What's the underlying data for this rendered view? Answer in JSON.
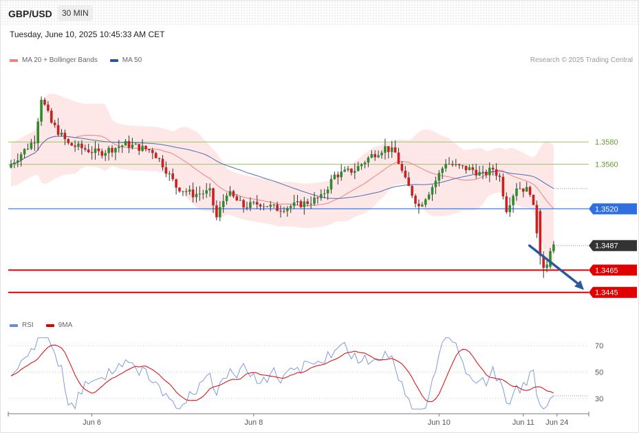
{
  "header": {
    "symbol": "GBP/USD",
    "interval": "30 MIN",
    "datetime": "Tuesday, June 10, 2025 10:45:33 AM CET",
    "credit": "Research © 2025 Trading Central"
  },
  "legend_main": [
    {
      "label": "MA 20 + Bollinger Bands",
      "color": "#f08080"
    },
    {
      "label": "MA 50",
      "color": "#2b5797"
    }
  ],
  "legend_rsi": [
    {
      "label": "RSI",
      "color": "#6a8ad8"
    },
    {
      "label": "9MA",
      "color": "#e00000"
    }
  ],
  "chart_data": {
    "type": "candlestick",
    "price_axis": {
      "min": 1.343,
      "max": 1.3645
    },
    "levels": [
      {
        "label": "1.3580",
        "value": 1.358,
        "style": "line",
        "color": "#9bc26b"
      },
      {
        "label": "1.3560",
        "value": 1.356,
        "style": "line",
        "color": "#9bc26b"
      },
      {
        "label": "1.3520",
        "value": 1.352,
        "style": "tag",
        "color": "#2f6fe0"
      },
      {
        "label": "1.3487",
        "value": 1.3487,
        "style": "current",
        "color": "#333333"
      },
      {
        "label": "1.3465",
        "value": 1.3465,
        "style": "tag",
        "color": "#e00000"
      },
      {
        "label": "1.3445",
        "value": 1.3445,
        "style": "tag",
        "color": "#e00000"
      }
    ],
    "x_labels": [
      {
        "label": "Jun 6",
        "index": 24
      },
      {
        "label": "Jun 8",
        "index": 72
      },
      {
        "label": "Jun 10",
        "index": 127
      },
      {
        "label": "Jun 11",
        "index": 152
      },
      {
        "label": "Jun 24",
        "index": 162
      }
    ],
    "candles_count": 154,
    "forecast": {
      "from_index": 153,
      "from_value": 1.3487,
      "to_index": 168,
      "to_value": 1.3446
    },
    "rsi_axis": {
      "min": 20,
      "max": 80,
      "ticks": [
        70,
        50,
        30
      ]
    }
  }
}
